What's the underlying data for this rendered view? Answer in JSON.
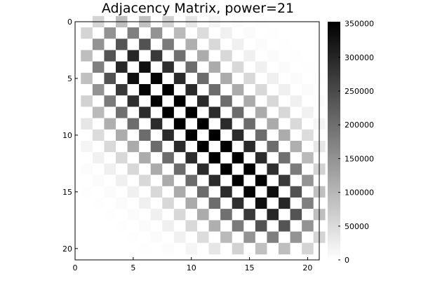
{
  "chart_data": {
    "type": "heatmap",
    "title": "Adjacency Matrix, power=21",
    "matrix_power": 21,
    "n": 21,
    "colormap": "greys (white=0, black=max)",
    "xlim": [
      0,
      21
    ],
    "ylim": [
      0,
      21
    ],
    "y_inverted": true,
    "x_ticks": [
      "0",
      "5",
      "10",
      "15",
      "20"
    ],
    "x_tick_values": [
      0,
      5,
      10,
      15,
      20
    ],
    "y_ticks": [
      "0",
      "5",
      "10",
      "15",
      "20"
    ],
    "y_tick_values": [
      0,
      5,
      10,
      15,
      20
    ],
    "colorbar": {
      "range": [
        0,
        352716
      ],
      "ticks": [
        "0",
        "50000",
        "100000",
        "150000",
        "200000",
        "250000",
        "300000",
        "350000"
      ],
      "tick_values": [
        0,
        50000,
        100000,
        150000,
        200000,
        250000,
        300000,
        350000
      ]
    },
    "grid": false,
    "legend": "colorbar-right"
  }
}
